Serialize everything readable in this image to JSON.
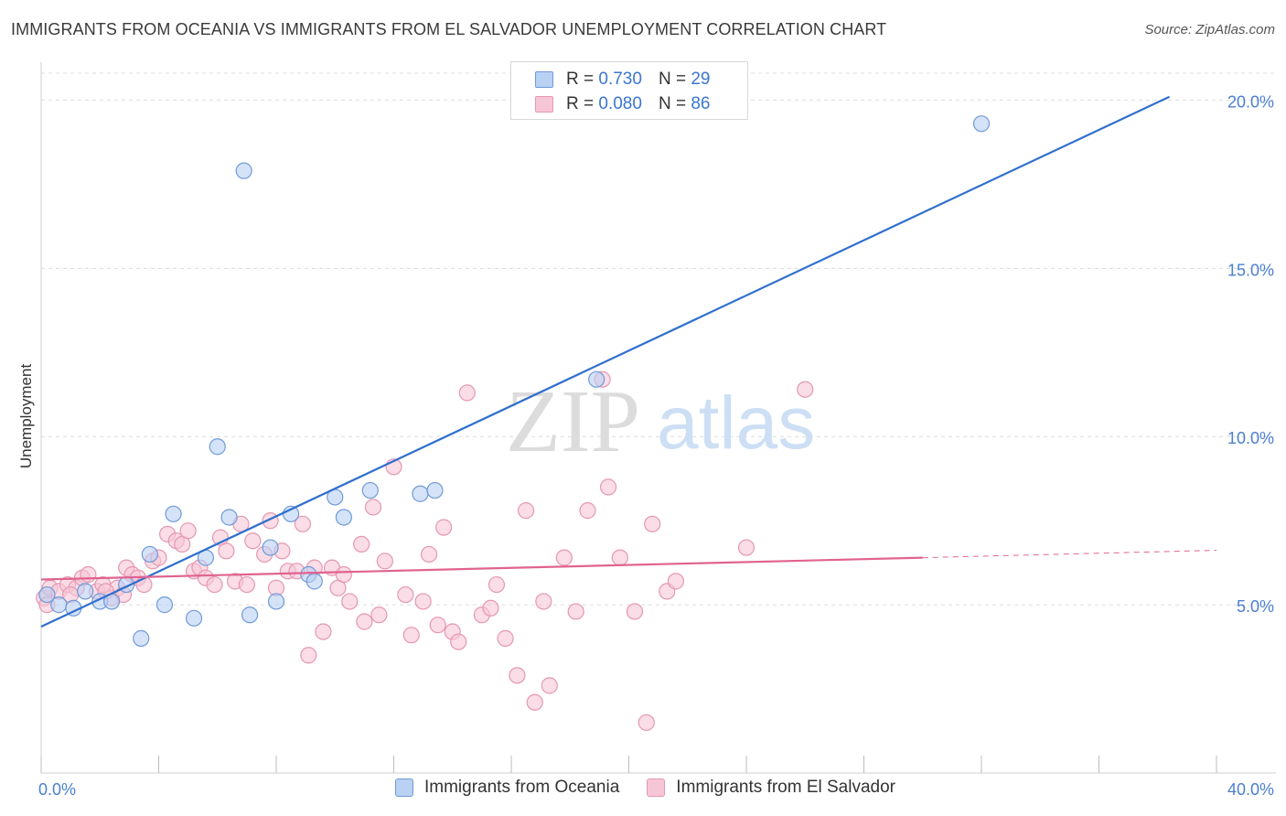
{
  "title": "IMMIGRANTS FROM OCEANIA VS IMMIGRANTS FROM EL SALVADOR UNEMPLOYMENT CORRELATION CHART",
  "source": "Source: ZipAtlas.com",
  "watermark": {
    "zip": "ZIP",
    "atlas": "atlas"
  },
  "legend": {
    "oceania": {
      "r_label": "R =",
      "r_value": "0.730",
      "n_label": "N =",
      "n_value": "29"
    },
    "salvador": {
      "r_label": "R =",
      "r_value": "0.080",
      "n_label": "N =",
      "n_value": "86"
    }
  },
  "colors": {
    "oceania_fill": "#b9d1f3",
    "oceania_stroke": "#6f9ad8",
    "oceania_line": "#2f6fce",
    "salvador_fill": "#f7c6d6",
    "salvador_stroke": "#e597b2",
    "salvador_line": "#e0638f",
    "tick_text": "#4a7fd0",
    "grid": "#dcdcdc"
  },
  "chart_data": {
    "type": "scatter",
    "ylabel": "Unemployment",
    "xlabel": "",
    "xlim": [
      0,
      40
    ],
    "ylim": [
      0,
      20.8
    ],
    "x_ticks": [
      "0.0%",
      "40.0%"
    ],
    "y_ticks": [
      {
        "value": 5,
        "label": "5.0%"
      },
      {
        "value": 10,
        "label": "10.0%"
      },
      {
        "value": 15,
        "label": "15.0%"
      },
      {
        "value": 20,
        "label": "20.0%"
      }
    ],
    "grid": true,
    "series": [
      {
        "name": "Immigrants from Oceania",
        "points": [
          [
            0.2,
            5.3
          ],
          [
            0.6,
            5.0
          ],
          [
            1.1,
            4.9
          ],
          [
            1.5,
            5.4
          ],
          [
            2.0,
            5.1
          ],
          [
            2.4,
            5.1
          ],
          [
            2.9,
            5.6
          ],
          [
            3.4,
            4.0
          ],
          [
            3.7,
            6.5
          ],
          [
            4.2,
            5.0
          ],
          [
            4.5,
            7.7
          ],
          [
            5.2,
            4.6
          ],
          [
            5.6,
            6.4
          ],
          [
            6.0,
            9.7
          ],
          [
            6.4,
            7.6
          ],
          [
            6.9,
            17.9
          ],
          [
            7.1,
            4.7
          ],
          [
            7.8,
            6.7
          ],
          [
            8.0,
            5.1
          ],
          [
            8.5,
            7.7
          ],
          [
            9.1,
            5.9
          ],
          [
            9.3,
            5.7
          ],
          [
            10.0,
            8.2
          ],
          [
            10.3,
            7.6
          ],
          [
            11.2,
            8.4
          ],
          [
            12.9,
            8.3
          ],
          [
            13.4,
            8.4
          ],
          [
            18.9,
            11.7
          ],
          [
            32.0,
            19.3
          ]
        ]
      },
      {
        "name": "Immigrants from El Salvador",
        "points": [
          [
            0.1,
            5.2
          ],
          [
            0.3,
            5.5
          ],
          [
            0.6,
            5.4
          ],
          [
            0.9,
            5.6
          ],
          [
            1.2,
            5.5
          ],
          [
            1.4,
            5.8
          ],
          [
            1.6,
            5.9
          ],
          [
            1.9,
            5.4
          ],
          [
            2.1,
            5.6
          ],
          [
            2.4,
            5.2
          ],
          [
            2.6,
            5.5
          ],
          [
            2.8,
            5.3
          ],
          [
            2.9,
            6.1
          ],
          [
            3.1,
            5.9
          ],
          [
            3.3,
            5.8
          ],
          [
            3.5,
            5.6
          ],
          [
            3.8,
            6.3
          ],
          [
            4.0,
            6.4
          ],
          [
            4.3,
            7.1
          ],
          [
            4.6,
            6.9
          ],
          [
            4.8,
            6.8
          ],
          [
            5.0,
            7.2
          ],
          [
            5.2,
            6.0
          ],
          [
            5.4,
            6.1
          ],
          [
            5.6,
            5.8
          ],
          [
            5.9,
            5.6
          ],
          [
            6.1,
            7.0
          ],
          [
            6.3,
            6.6
          ],
          [
            6.6,
            5.7
          ],
          [
            6.8,
            7.4
          ],
          [
            7.0,
            5.6
          ],
          [
            7.2,
            6.9
          ],
          [
            7.6,
            6.5
          ],
          [
            7.8,
            7.5
          ],
          [
            8.0,
            5.5
          ],
          [
            8.2,
            6.6
          ],
          [
            8.4,
            6.0
          ],
          [
            8.7,
            6.0
          ],
          [
            8.9,
            7.4
          ],
          [
            9.1,
            3.5
          ],
          [
            9.3,
            6.1
          ],
          [
            9.6,
            4.2
          ],
          [
            9.9,
            6.1
          ],
          [
            10.1,
            5.5
          ],
          [
            10.3,
            5.9
          ],
          [
            10.5,
            5.1
          ],
          [
            10.9,
            6.8
          ],
          [
            11.0,
            4.5
          ],
          [
            11.3,
            7.9
          ],
          [
            11.5,
            4.7
          ],
          [
            11.7,
            6.3
          ],
          [
            12.0,
            9.1
          ],
          [
            12.4,
            5.3
          ],
          [
            12.6,
            4.1
          ],
          [
            13.0,
            5.1
          ],
          [
            13.2,
            6.5
          ],
          [
            13.5,
            4.4
          ],
          [
            13.7,
            7.3
          ],
          [
            14.0,
            4.2
          ],
          [
            14.2,
            3.9
          ],
          [
            14.5,
            11.3
          ],
          [
            15.0,
            4.7
          ],
          [
            15.3,
            4.9
          ],
          [
            15.5,
            5.6
          ],
          [
            15.8,
            4.0
          ],
          [
            16.2,
            2.9
          ],
          [
            16.5,
            7.8
          ],
          [
            16.8,
            2.1
          ],
          [
            17.1,
            5.1
          ],
          [
            17.3,
            2.6
          ],
          [
            17.8,
            6.4
          ],
          [
            18.2,
            4.8
          ],
          [
            18.6,
            7.8
          ],
          [
            19.1,
            11.7
          ],
          [
            19.3,
            8.5
          ],
          [
            19.7,
            6.4
          ],
          [
            20.2,
            4.8
          ],
          [
            20.6,
            1.5
          ],
          [
            20.8,
            7.4
          ],
          [
            21.3,
            5.4
          ],
          [
            21.6,
            5.7
          ],
          [
            24.0,
            6.7
          ],
          [
            26.0,
            11.4
          ],
          [
            0.2,
            5.0
          ],
          [
            1.0,
            5.3
          ],
          [
            2.2,
            5.4
          ]
        ]
      }
    ],
    "trendlines": [
      {
        "series": "Immigrants from Oceania",
        "x": [
          0,
          38.4
        ],
        "y": [
          4.35,
          20.1
        ],
        "style": "solid"
      },
      {
        "series": "Immigrants from El Salvador",
        "x": [
          0,
          30.0
        ],
        "y": [
          5.75,
          6.4
        ],
        "style": "solid"
      },
      {
        "series": "Immigrants from El Salvador",
        "x": [
          30.0,
          40.0
        ],
        "y": [
          6.4,
          6.62
        ],
        "style": "dashed"
      }
    ]
  }
}
